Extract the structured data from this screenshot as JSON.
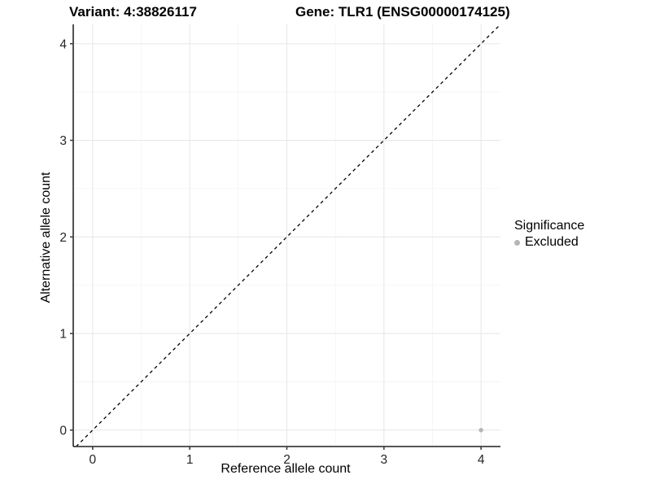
{
  "figure": {
    "title_left": "Variant: 4:38826117",
    "title_right": "Gene: TLR1 (ENSG00000174125)"
  },
  "axes": {
    "x_label": "Reference allele count",
    "y_label": "Alternative allele count"
  },
  "legend": {
    "title": "Significance",
    "items": [
      {
        "label": "Excluded",
        "color": "#b5b5b5"
      }
    ]
  },
  "colors": {
    "background": "#ffffff",
    "grid_major": "#e8e8e8",
    "grid_minor": "#f3f3f3",
    "axis_line": "#3f3f3f",
    "tick_label": "#262626",
    "reference_line": "#000000"
  },
  "chart_data": {
    "type": "scatter",
    "title": "Variant: 4:38826117    Gene: TLR1 (ENSG00000174125)",
    "xlabel": "Reference allele count",
    "ylabel": "Alternative allele count",
    "xlim": [
      -0.2,
      4.2
    ],
    "ylim": [
      -0.17,
      4.2
    ],
    "x_ticks": [
      0,
      1,
      2,
      3,
      4
    ],
    "y_ticks": [
      0,
      1,
      2,
      3,
      4
    ],
    "grid": "major and minor light-grey gridlines on white panel, axis lines on left and bottom only",
    "legend_position": "right",
    "legend_title": "Significance",
    "series": [
      {
        "name": "Excluded",
        "color": "#b5b5b5",
        "points": [
          {
            "x": 4,
            "y": 0
          }
        ]
      }
    ],
    "reference_line": {
      "kind": "identity y = x",
      "style": "dashed",
      "color": "#000000"
    }
  }
}
